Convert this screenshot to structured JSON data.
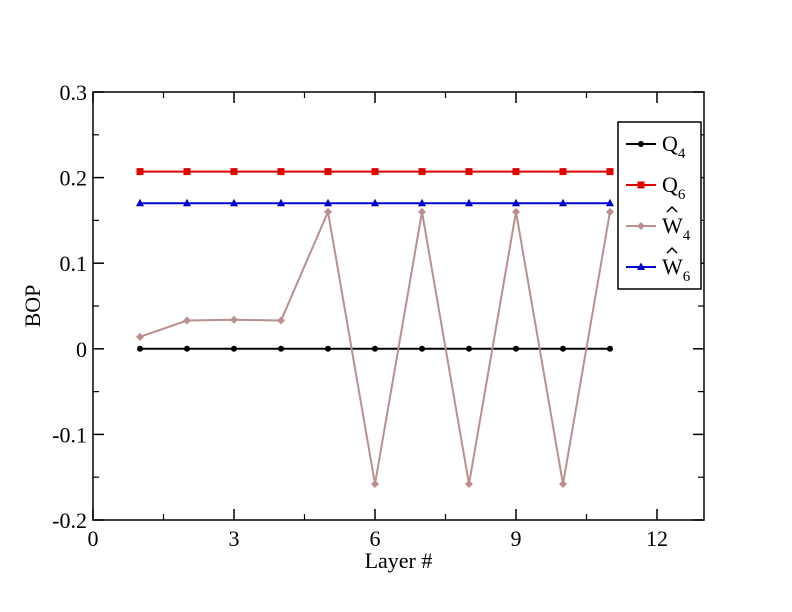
{
  "chart_data": {
    "type": "line",
    "title": "",
    "xlabel": "Layer #",
    "ylabel": "BOP",
    "xlim": [
      0,
      13
    ],
    "ylim": [
      -0.2,
      0.3
    ],
    "xticks": [
      0,
      3,
      6,
      9,
      12
    ],
    "xtick_labels": [
      "0",
      "3",
      "6",
      "9",
      "12"
    ],
    "yticks": [
      -0.2,
      -0.1,
      0,
      0.1,
      0.2,
      0.3
    ],
    "ytick_labels": [
      "-0.2",
      "-0.1",
      "0",
      "0.1",
      "0.2",
      "0.3"
    ],
    "grid": false,
    "legend_position": "top-right",
    "x": [
      1,
      2,
      3,
      4,
      5,
      6,
      7,
      8,
      9,
      10,
      11
    ],
    "series": [
      {
        "name": "Q4",
        "legend_main": "Q",
        "legend_sub": "4",
        "legend_hat": false,
        "color": "#000000",
        "marker": "circle",
        "values": [
          0,
          0,
          0,
          0,
          0,
          0,
          0,
          0,
          0,
          0,
          0
        ]
      },
      {
        "name": "Q6",
        "legend_main": "Q",
        "legend_sub": "6",
        "legend_hat": false,
        "color": "#e00000",
        "marker": "square",
        "values": [
          0.207,
          0.207,
          0.207,
          0.207,
          0.207,
          0.207,
          0.207,
          0.207,
          0.207,
          0.207,
          0.207
        ]
      },
      {
        "name": "Ŵ4",
        "legend_main": "W",
        "legend_sub": "4",
        "legend_hat": true,
        "color": "#bc8f8f",
        "marker": "diamond",
        "values": [
          0.014,
          0.033,
          0.034,
          0.033,
          0.16,
          -0.158,
          0.16,
          -0.158,
          0.16,
          -0.158,
          0.16
        ]
      },
      {
        "name": "Ŵ6",
        "legend_main": "W",
        "legend_sub": "6",
        "legend_hat": true,
        "color": "#0000d0",
        "marker": "triangle",
        "values": [
          0.17,
          0.17,
          0.17,
          0.17,
          0.17,
          0.17,
          0.17,
          0.17,
          0.17,
          0.17,
          0.17
        ]
      }
    ]
  }
}
